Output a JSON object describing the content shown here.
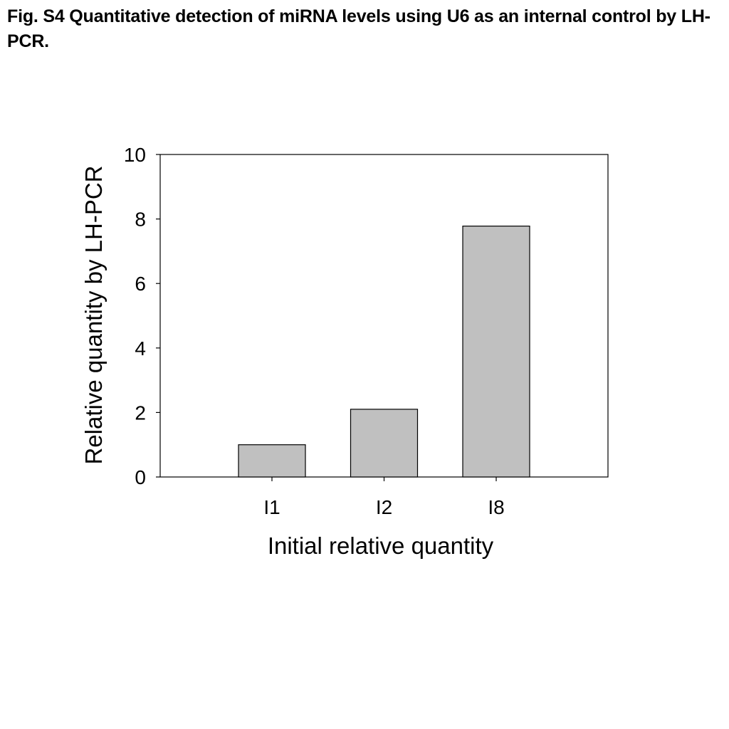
{
  "figure": {
    "caption": "Fig. S4  Quantitative detection of miRNA levels using U6 as an internal control by LH-PCR."
  },
  "chart_data": {
    "type": "bar",
    "categories": [
      "I1",
      "I2",
      "I8"
    ],
    "values": [
      1.0,
      2.1,
      7.78
    ],
    "xlabel": "Initial relative quantity",
    "ylabel": "Relative quantity by LH-PCR",
    "ylim": [
      0,
      10
    ],
    "yticks": [
      0,
      2,
      4,
      6,
      8,
      10
    ],
    "grid": false,
    "legend": "none",
    "colors": {
      "bar_fill": "#c0c0c0",
      "bar_stroke": "#000000",
      "axis": "#000000"
    }
  }
}
